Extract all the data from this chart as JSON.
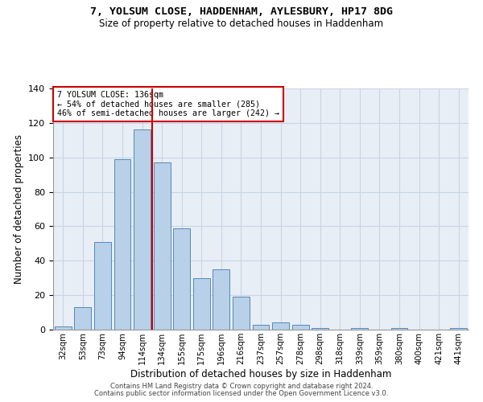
{
  "title1": "7, YOLSUM CLOSE, HADDENHAM, AYLESBURY, HP17 8DG",
  "title2": "Size of property relative to detached houses in Haddenham",
  "xlabel": "Distribution of detached houses by size in Haddenham",
  "ylabel": "Number of detached properties",
  "footer1": "Contains HM Land Registry data © Crown copyright and database right 2024.",
  "footer2": "Contains public sector information licensed under the Open Government Licence v3.0.",
  "categories": [
    "32sqm",
    "53sqm",
    "73sqm",
    "94sqm",
    "114sqm",
    "134sqm",
    "155sqm",
    "175sqm",
    "196sqm",
    "216sqm",
    "237sqm",
    "257sqm",
    "278sqm",
    "298sqm",
    "318sqm",
    "339sqm",
    "359sqm",
    "380sqm",
    "400sqm",
    "421sqm",
    "441sqm"
  ],
  "values": [
    2,
    13,
    51,
    99,
    116,
    97,
    59,
    30,
    35,
    19,
    3,
    4,
    3,
    1,
    0,
    1,
    0,
    1,
    0,
    0,
    1
  ],
  "bar_color": "#b8d0e8",
  "bar_edge_color": "#5588bb",
  "grid_color": "#c8d4e4",
  "background_color": "#e8eef6",
  "marker_label": "7 YOLSUM CLOSE: 136sqm",
  "marker_line_color": "#cc0000",
  "annotation_line1": "← 54% of detached houses are smaller (285)",
  "annotation_line2": "46% of semi-detached houses are larger (242) →",
  "annotation_box_color": "#cc0000",
  "ylim": [
    0,
    140
  ],
  "yticks": [
    0,
    20,
    40,
    60,
    80,
    100,
    120,
    140
  ]
}
